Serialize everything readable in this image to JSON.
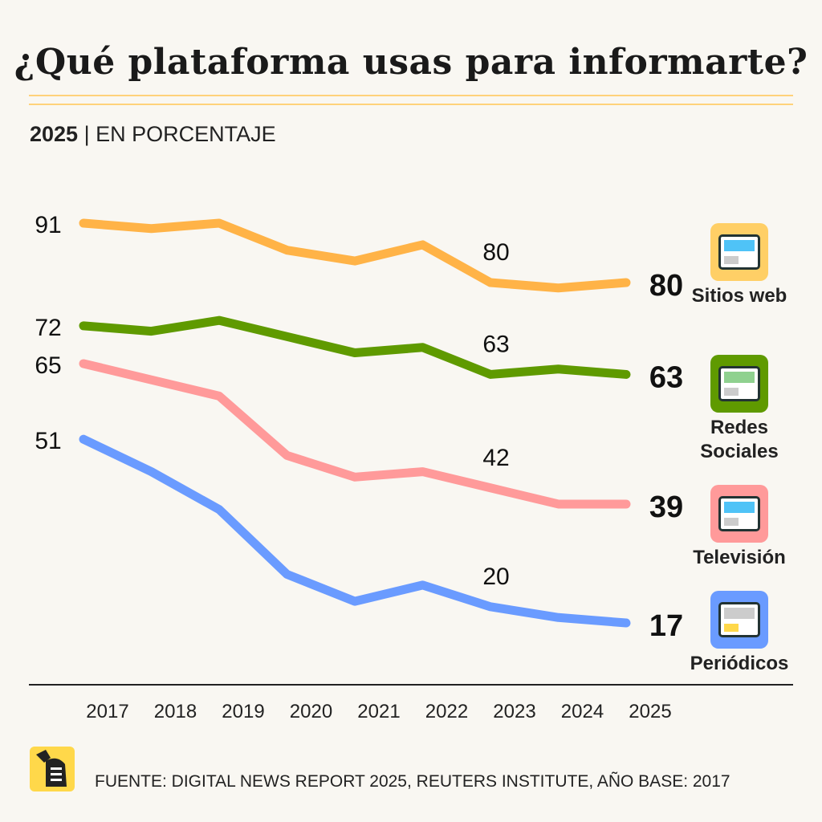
{
  "title": "¿Qué plataforma usas para informarte?",
  "subtitle": {
    "year": "2025",
    "separator": "|",
    "unit": "EN PORCENTAJE"
  },
  "source": "FUENTE: DIGITAL NEWS REPORT 2025, REUTERS INSTITUTE, AÑO BASE: 2017",
  "chart_data": {
    "type": "line",
    "x": [
      "2017",
      "2018",
      "2019",
      "2020",
      "2021",
      "2022",
      "2023",
      "2024",
      "2025"
    ],
    "ylim": [
      10,
      95
    ],
    "grid": false,
    "series": [
      {
        "name": "Sitios web",
        "color": "#ffb347",
        "icon": "website-icon",
        "icon_bg": "#ffcf66",
        "values": [
          91,
          90,
          91,
          86,
          84,
          87,
          80,
          79,
          80
        ],
        "labels": {
          "start": "91",
          "mid": "80",
          "end": "80"
        }
      },
      {
        "name": "Redes Sociales",
        "color": "#5f9a00",
        "icon": "social-media-phone-icon",
        "icon_bg": "#5f9a00",
        "values": [
          72,
          71,
          73,
          70,
          67,
          68,
          63,
          64,
          63
        ],
        "labels": {
          "start": "72",
          "mid": "63",
          "end": "63"
        }
      },
      {
        "name": "Televisión",
        "color": "#ff9a9a",
        "icon": "television-icon",
        "icon_bg": "#ff9a9a",
        "values": [
          65,
          62,
          59,
          48,
          44,
          45,
          42,
          39,
          39
        ],
        "labels": {
          "start": "65",
          "mid": "42",
          "end": "39"
        }
      },
      {
        "name": "Periódicos",
        "color": "#6a9bff",
        "icon": "newspaper-icon",
        "icon_bg": "#6a9bff",
        "values": [
          51,
          45,
          38,
          26,
          21,
          24,
          20,
          18,
          17
        ],
        "labels": {
          "start": "51",
          "mid": "20",
          "end": "17"
        }
      }
    ]
  }
}
